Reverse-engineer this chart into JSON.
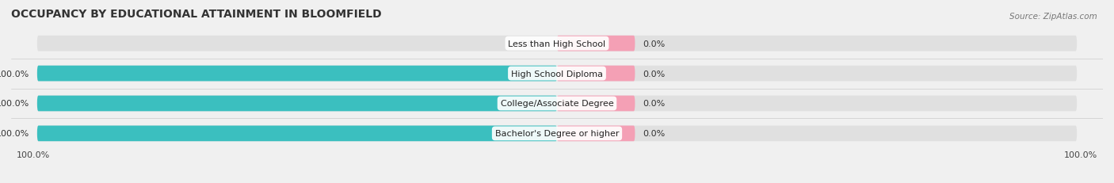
{
  "title": "OCCUPANCY BY EDUCATIONAL ATTAINMENT IN BLOOMFIELD",
  "source": "Source: ZipAtlas.com",
  "categories": [
    "Less than High School",
    "High School Diploma",
    "College/Associate Degree",
    "Bachelor's Degree or higher"
  ],
  "owner_values": [
    0.0,
    100.0,
    100.0,
    100.0
  ],
  "renter_values": [
    0.0,
    0.0,
    0.0,
    0.0
  ],
  "renter_display": [
    15.0,
    15.0,
    15.0,
    15.0
  ],
  "owner_color": "#3bbfbf",
  "renter_color": "#f4a0b5",
  "bg_color": "#f0f0f0",
  "bar_bg_color": "#e0e0e0",
  "title_fontsize": 10,
  "source_fontsize": 7.5,
  "label_fontsize": 8,
  "cat_fontsize": 8,
  "legend_fontsize": 8,
  "bar_height": 0.52,
  "figsize": [
    14.06,
    2.32
  ],
  "dpi": 100
}
